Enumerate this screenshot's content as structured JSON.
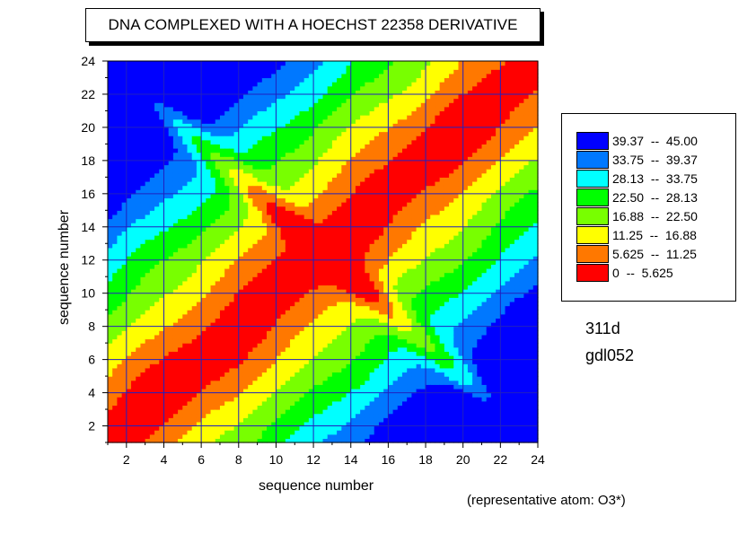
{
  "chart_data": {
    "type": "heatmap",
    "title": "DNA COMPLEXED WITH A HOECHST 22358 DERIVATIVE",
    "xlabel": "sequence number",
    "ylabel": "sequence number",
    "xlim": [
      1,
      24
    ],
    "ylim": [
      1,
      24
    ],
    "x_ticks": [
      "2",
      "4",
      "6",
      "8",
      "10",
      "12",
      "14",
      "16",
      "18",
      "20",
      "22",
      "24"
    ],
    "y_ticks": [
      "2",
      "4",
      "6",
      "8",
      "10",
      "12",
      "14",
      "16",
      "18",
      "20",
      "22",
      "24"
    ],
    "grid": true,
    "legend_position": "right",
    "legend": [
      {
        "label": "39.37  --  45.00",
        "color": "#0000ff"
      },
      {
        "label": "33.75  --  39.37",
        "color": "#0078ff"
      },
      {
        "label": "28.13  --  33.75",
        "color": "#00ffff"
      },
      {
        "label": "22.50  --  28.13",
        "color": "#00ff00"
      },
      {
        "label": "16.88  --  22.50",
        "color": "#78ff00"
      },
      {
        "label": "11.25  --  16.88",
        "color": "#ffff00"
      },
      {
        "label": "5.625  --  11.25",
        "color": "#ff7800"
      },
      {
        "label": "0  --  5.625",
        "color": "#ff0000"
      }
    ],
    "levels": [
      0,
      5.625,
      11.25,
      16.88,
      22.5,
      28.13,
      33.75,
      39.37,
      45.0
    ]
  },
  "labels": {
    "id1": "311d",
    "id2": "gdl052",
    "footnote": "(representative atom: O3*)"
  }
}
